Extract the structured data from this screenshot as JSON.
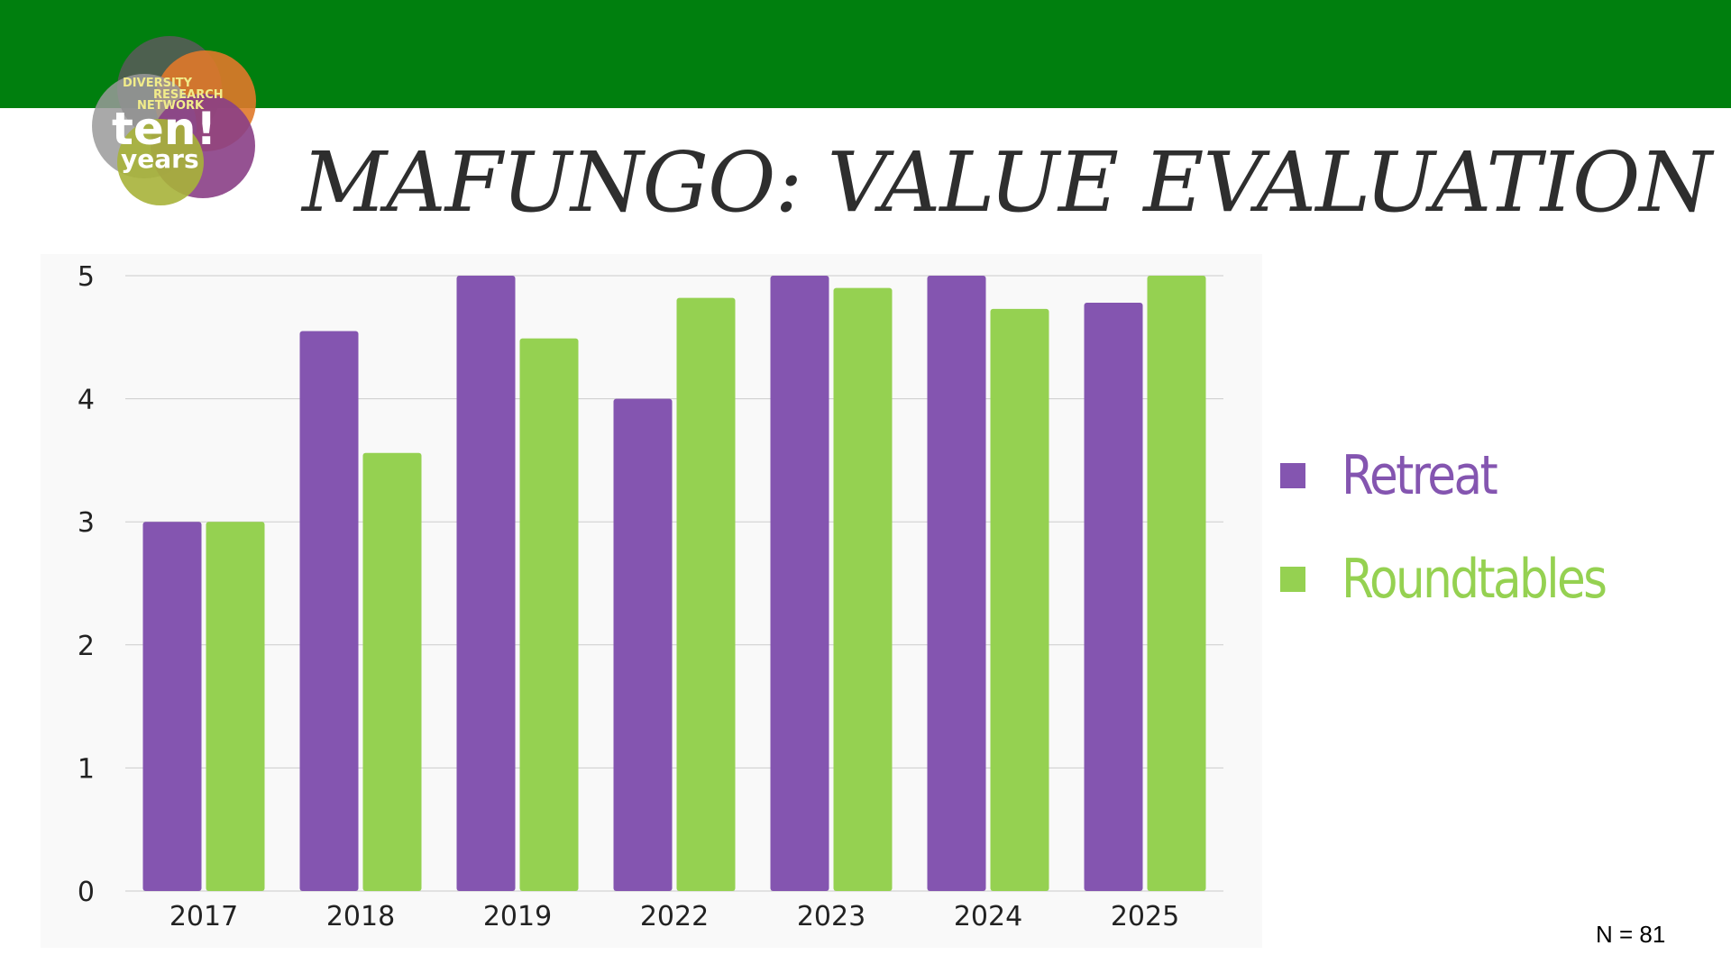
{
  "header": {
    "title": "MAFUNGO: VALUE EVALUATION",
    "bar_color": "#007f0e"
  },
  "logo": {
    "line1": "DIVERSITY",
    "line2": "RESEARCH",
    "line3": "NETWORK",
    "line4": "ten!",
    "line5": "years"
  },
  "chart_data": {
    "type": "bar",
    "categories": [
      "2017",
      "2018",
      "2019",
      "2022",
      "2023",
      "2024",
      "2025"
    ],
    "series": [
      {
        "name": "Retreat",
        "color": "#8455b0",
        "values": [
          3.0,
          4.55,
          5.0,
          4.0,
          5.0,
          5.0,
          4.78
        ]
      },
      {
        "name": "Roundtables",
        "color": "#95d151",
        "values": [
          3.0,
          3.56,
          4.49,
          4.82,
          4.9,
          4.73,
          5.0
        ]
      }
    ],
    "ylim": [
      0,
      5
    ],
    "yticks": [
      "0",
      "1",
      "2",
      "3",
      "4",
      "5"
    ],
    "grid": true,
    "legend_position": "right"
  },
  "footer": {
    "note": "N = 81"
  }
}
